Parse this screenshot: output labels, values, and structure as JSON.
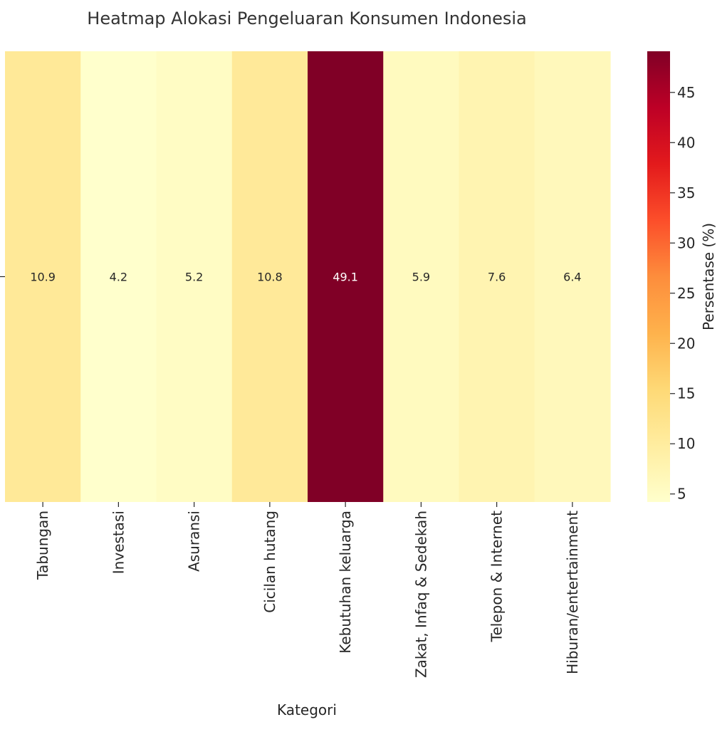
{
  "chart_data": {
    "type": "heatmap",
    "title": "Heatmap Alokasi Pengeluaran Konsumen Indonesia",
    "xlabel": "Kategori",
    "ylabel": "",
    "categories": [
      "Tabungan",
      "Investasi",
      "Asuransi",
      "Cicilan hutang",
      "Kebutuhan keluarga",
      "Zakat, Infaq & Sedekah",
      "Telepon & Internet",
      "Hiburan/entertainment"
    ],
    "values": [
      10.9,
      4.2,
      5.2,
      10.8,
      49.1,
      5.9,
      7.6,
      6.4
    ],
    "value_labels": [
      "10.9",
      "4.2",
      "5.2",
      "10.8",
      "49.1",
      "5.9",
      "7.6",
      "6.4"
    ],
    "colorbar": {
      "label": "Persentase (%)",
      "range": [
        4.2,
        49.1
      ],
      "ticks": [
        5,
        10,
        15,
        20,
        25,
        30,
        35,
        40,
        45
      ],
      "tick_labels": [
        "5",
        "10",
        "15",
        "20",
        "25",
        "30",
        "35",
        "40",
        "45"
      ],
      "colormap": "YlOrRd",
      "colormap_stops": [
        "#ffffcc",
        "#ffeda0",
        "#fed976",
        "#feb24c",
        "#fd8d3c",
        "#fc4e2a",
        "#e31a1c",
        "#bd0026",
        "#800026"
      ]
    },
    "annotation_colors": {
      "dark": "#262626",
      "light": "#ffffff"
    }
  }
}
